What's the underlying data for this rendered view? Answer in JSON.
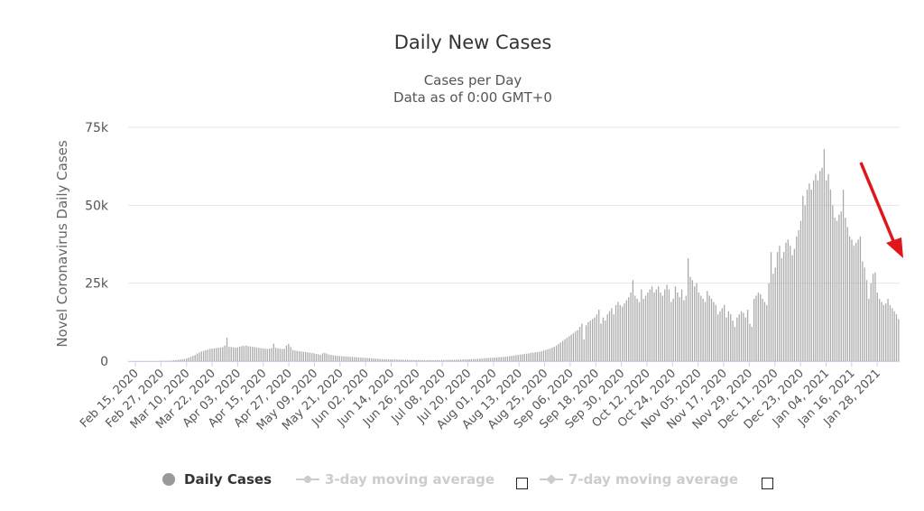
{
  "chart_data": {
    "type": "bar",
    "title": "Daily New Cases",
    "subtitle_lines": [
      "Cases per Day",
      "Data as of 0:00 GMT+0"
    ],
    "ylabel": "Novel Coronavirus Daily Cases",
    "xlabel": "",
    "ylim": [
      0,
      75000
    ],
    "y_ticks": [
      0,
      25000,
      50000,
      75000
    ],
    "y_tick_labels": [
      "0",
      "25k",
      "50k",
      "75k"
    ],
    "grid": true,
    "legend_position": "bottom",
    "x_start": "Feb 15, 2020",
    "x_tick_labels": [
      "Feb 15, 2020",
      "Feb 27, 2020",
      "Mar 10, 2020",
      "Mar 22, 2020",
      "Apr 03, 2020",
      "Apr 15, 2020",
      "Apr 27, 2020",
      "May 09, 2020",
      "May 21, 2020",
      "Jun 02, 2020",
      "Jun 14, 2020",
      "Jun 26, 2020",
      "Jul 08, 2020",
      "Jul 20, 2020",
      "Aug 01, 2020",
      "Aug 13, 2020",
      "Aug 25, 2020",
      "Sep 06, 2020",
      "Sep 18, 2020",
      "Sep 30, 2020",
      "Oct 12, 2020",
      "Oct 24, 2020",
      "Nov 05, 2020",
      "Nov 17, 2020",
      "Nov 29, 2020",
      "Dec 11, 2020",
      "Dec 23, 2020",
      "Jan 04, 2021",
      "Jan 16, 2021",
      "Jan 28, 2021"
    ],
    "series": [
      {
        "name": "Daily Cases",
        "color": "#aaaaaa",
        "values": [
          0,
          0,
          0,
          0,
          0,
          0,
          0,
          0,
          0,
          0,
          0,
          0,
          0,
          0,
          50,
          60,
          80,
          100,
          120,
          150,
          200,
          250,
          300,
          400,
          500,
          600,
          700,
          900,
          1100,
          1400,
          1700,
          2000,
          2400,
          2800,
          3100,
          3300,
          3500,
          3700,
          3900,
          4000,
          4100,
          4200,
          4300,
          4400,
          4500,
          5000,
          7500,
          4600,
          4500,
          4400,
          4300,
          4400,
          4600,
          4800,
          4900,
          5000,
          4800,
          4700,
          4600,
          4500,
          4400,
          4300,
          4200,
          4100,
          4000,
          3900,
          4000,
          4200,
          5600,
          4300,
          4100,
          4000,
          3900,
          4000,
          5000,
          5500,
          4500,
          3600,
          3400,
          3300,
          3200,
          3100,
          3000,
          2900,
          2800,
          2700,
          2600,
          2500,
          2300,
          2200,
          2000,
          2500,
          2700,
          2400,
          2100,
          2000,
          1900,
          1800,
          1700,
          1650,
          1600,
          1550,
          1500,
          1450,
          1400,
          1350,
          1300,
          1250,
          1200,
          1150,
          1100,
          1050,
          1000,
          950,
          900,
          850,
          800,
          750,
          700,
          650,
          620,
          600,
          580,
          560,
          540,
          520,
          500,
          480,
          460,
          440,
          420,
          400,
          380,
          370,
          360,
          350,
          340,
          330,
          320,
          310,
          300,
          300,
          300,
          310,
          320,
          330,
          340,
          350,
          360,
          380,
          400,
          420,
          440,
          460,
          480,
          500,
          520,
          540,
          560,
          580,
          600,
          630,
          660,
          700,
          750,
          800,
          850,
          900,
          950,
          1000,
          1050,
          1100,
          1150,
          1200,
          1250,
          1300,
          1350,
          1400,
          1500,
          1600,
          1700,
          1800,
          1900,
          2000,
          2100,
          2200,
          2300,
          2400,
          2500,
          2600,
          2700,
          2800,
          2900,
          3000,
          3200,
          3400,
          3600,
          3800,
          4000,
          4300,
          4600,
          5000,
          5500,
          6000,
          6500,
          7000,
          7500,
          8000,
          8500,
          9000,
          9500,
          10000,
          11000,
          12000,
          7000,
          11500,
          12500,
          13000,
          13500,
          14000,
          15000,
          16500,
          12000,
          14000,
          13000,
          15000,
          16000,
          17000,
          15000,
          18000,
          19000,
          18000,
          17500,
          18500,
          19500,
          20500,
          22000,
          26000,
          21000,
          20000,
          19000,
          23000,
          20000,
          21000,
          22000,
          23000,
          24000,
          22000,
          23000,
          24000,
          22000,
          21000,
          23000,
          24500,
          23000,
          19000,
          20000,
          24000,
          22000,
          20500,
          23000,
          19500,
          21000,
          33000,
          27000,
          26000,
          24000,
          25000,
          22000,
          21000,
          20000,
          19000,
          22500,
          21000,
          20000,
          19000,
          18000,
          15000,
          16000,
          17000,
          18000,
          14000,
          16000,
          15000,
          13000,
          11000,
          14000,
          15000,
          16000,
          15500,
          14000,
          16500,
          12000,
          11000,
          20000,
          21000,
          22000,
          21500,
          20000,
          19000,
          18000,
          25000,
          35000,
          28000,
          30000,
          35000,
          37000,
          33000,
          35000,
          38000,
          39000,
          37000,
          34000,
          36000,
          40000,
          42000,
          45000,
          53000,
          50000,
          55000,
          57000,
          55000,
          58000,
          60000,
          58000,
          61000,
          62000,
          68000,
          58000,
          60000,
          55000,
          50000,
          46000,
          45000,
          47000,
          48000,
          55000,
          46000,
          43000,
          40000,
          39000,
          37000,
          38000,
          39000,
          40000,
          32000,
          30000,
          26000,
          20000,
          25000,
          28000,
          28500,
          22000,
          20000,
          19000,
          18000,
          18500,
          20000,
          18000,
          17000,
          16000,
          15000,
          13500
        ]
      }
    ]
  },
  "legend": {
    "daily_label": "Daily Cases",
    "avg3_label": "3-day moving average",
    "avg7_label": "7-day moving average"
  },
  "colors": {
    "bar": "#aaaaaa",
    "annotation_arrow": "#e0161b",
    "grid": "#e6e6e6"
  }
}
